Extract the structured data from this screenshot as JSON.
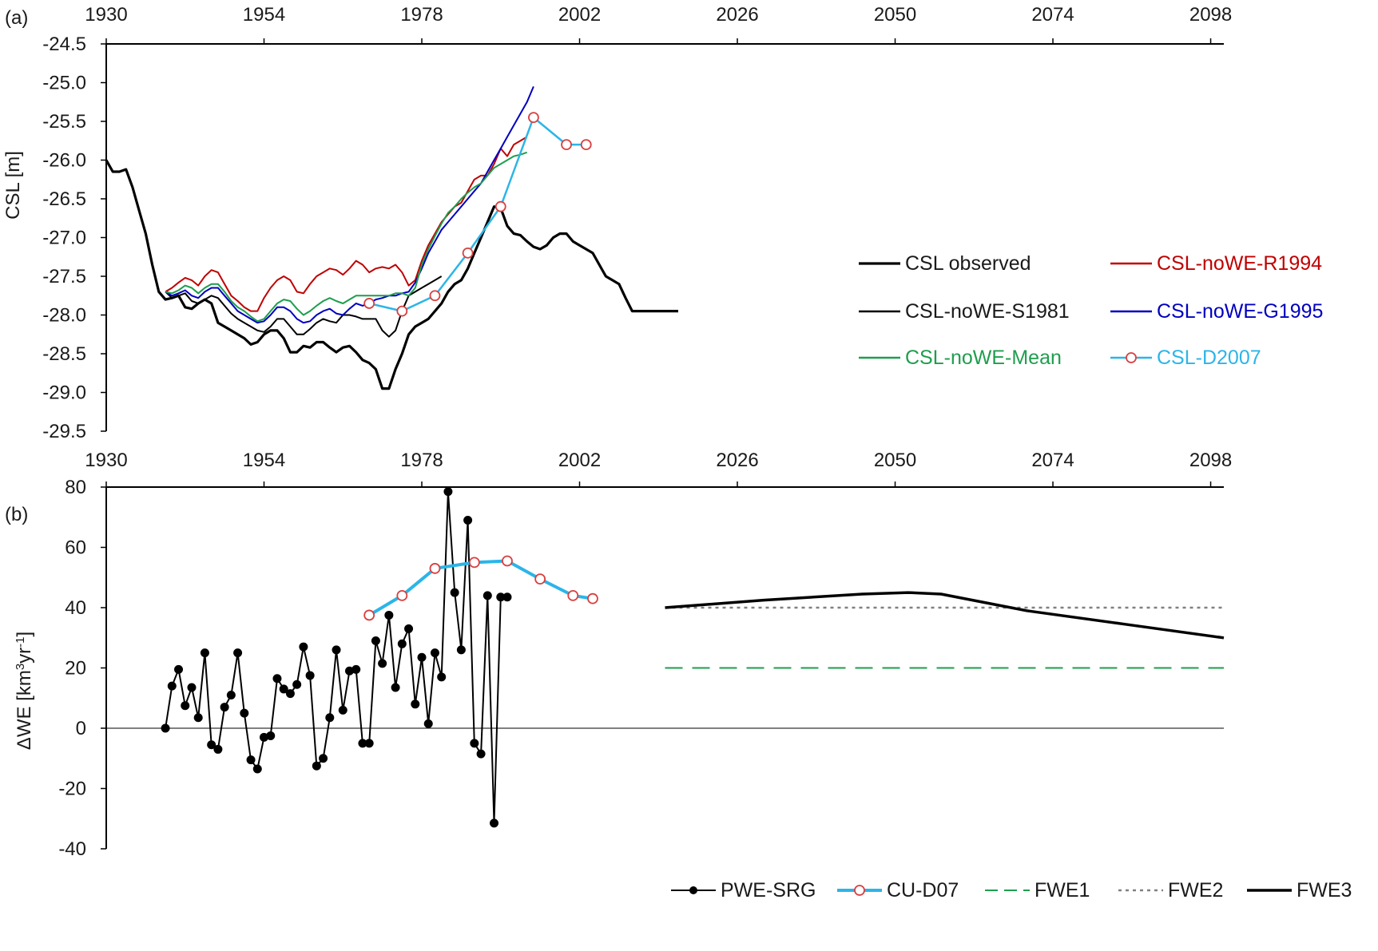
{
  "chart_data": [
    {
      "type": "line",
      "panel_label": "(a)",
      "ylabel": "CSL [m]",
      "xlabel": "",
      "xlim": [
        1930,
        2100
      ],
      "ylim": [
        -29.5,
        -24.5
      ],
      "xticks": [
        "1930",
        "1954",
        "1978",
        "2002",
        "2026",
        "2050",
        "2074",
        "2098"
      ],
      "yticks": [
        "-24.5",
        "-25.0",
        "-25.5",
        "-26.0",
        "-26.5",
        "-27.0",
        "-27.5",
        "-28.0",
        "-28.5",
        "-29.0",
        "-29.5"
      ],
      "x_axis_position": "top",
      "grid": false,
      "legend_position": "right",
      "series": [
        {
          "name": "CSL observed",
          "color": "#000000",
          "x": [
            1930,
            1931,
            1932,
            1933,
            1934,
            1935,
            1936,
            1937,
            1938,
            1939,
            1940,
            1941,
            1942,
            1943,
            1944,
            1945,
            1946,
            1947,
            1948,
            1949,
            1950,
            1951,
            1952,
            1953,
            1954,
            1955,
            1956,
            1957,
            1958,
            1959,
            1960,
            1961,
            1962,
            1963,
            1964,
            1965,
            1966,
            1967,
            1968,
            1969,
            1970,
            1971,
            1972,
            1973,
            1974,
            1975,
            1976,
            1977,
            1978,
            1979,
            1980,
            1981,
            1982,
            1983,
            1984,
            1985,
            1986,
            1987,
            1988,
            1989,
            1990,
            1991,
            1992,
            1993,
            1994,
            1995,
            1996,
            1997,
            1998,
            1999,
            2000,
            2001,
            2002,
            2003,
            2004,
            2005,
            2006,
            2007,
            2008,
            2009,
            2010,
            2011,
            2012,
            2013,
            2014,
            2015,
            2016,
            2017
          ],
          "values": [
            -26.0,
            -26.15,
            -26.15,
            -26.12,
            -26.35,
            -26.65,
            -26.95,
            -27.35,
            -27.7,
            -27.8,
            -27.78,
            -27.75,
            -27.9,
            -27.92,
            -27.85,
            -27.8,
            -27.85,
            -28.1,
            -28.15,
            -28.2,
            -28.25,
            -28.3,
            -28.38,
            -28.35,
            -28.25,
            -28.2,
            -28.2,
            -28.3,
            -28.48,
            -28.48,
            -28.4,
            -28.42,
            -28.35,
            -28.35,
            -28.42,
            -28.48,
            -28.42,
            -28.4,
            -28.48,
            -28.58,
            -28.62,
            -28.7,
            -28.95,
            -28.95,
            -28.7,
            -28.5,
            -28.25,
            -28.15,
            -28.1,
            -28.05,
            -27.95,
            -27.85,
            -27.7,
            -27.6,
            -27.55,
            -27.4,
            -27.2,
            -27.0,
            -26.8,
            -26.6,
            -26.62,
            -26.85,
            -26.95,
            -26.97,
            -27.05,
            -27.12,
            -27.15,
            -27.1,
            -27.0,
            -26.95,
            -26.95,
            -27.05,
            -27.1,
            -27.15,
            -27.2,
            -27.35,
            -27.5,
            -27.55,
            -27.6,
            -27.78,
            -27.95,
            -27.95,
            -27.95,
            -27.95,
            -27.95,
            -27.95,
            -27.95,
            -27.95
          ]
        },
        {
          "name": "CSL-noWE-S1981",
          "color": "#000000",
          "x": [
            1939,
            1940,
            1941,
            1942,
            1943,
            1944,
            1945,
            1946,
            1947,
            1948,
            1949,
            1950,
            1951,
            1952,
            1953,
            1954,
            1955,
            1956,
            1957,
            1958,
            1959,
            1960,
            1961,
            1962,
            1963,
            1964,
            1965,
            1966,
            1967,
            1968,
            1969,
            1970,
            1971,
            1972,
            1973,
            1974,
            1975,
            1976,
            1977,
            1978,
            1979,
            1980,
            1981
          ],
          "values": [
            -27.7,
            -27.78,
            -27.75,
            -27.72,
            -27.82,
            -27.85,
            -27.8,
            -27.75,
            -27.78,
            -27.88,
            -27.98,
            -28.05,
            -28.1,
            -28.15,
            -28.2,
            -28.22,
            -28.15,
            -28.05,
            -28.05,
            -28.15,
            -28.25,
            -28.25,
            -28.18,
            -28.1,
            -28.05,
            -28.08,
            -28.1,
            -28.0,
            -28.0,
            -28.02,
            -28.05,
            -28.05,
            -28.05,
            -28.2,
            -28.28,
            -28.2,
            -27.95,
            -27.75,
            -27.7,
            -27.65,
            -27.6,
            -27.55,
            -27.5
          ]
        },
        {
          "name": "CSL-noWE-R1994",
          "color": "#c00000",
          "x": [
            1939,
            1940,
            1941,
            1942,
            1943,
            1944,
            1945,
            1946,
            1947,
            1948,
            1949,
            1950,
            1951,
            1952,
            1953,
            1954,
            1955,
            1956,
            1957,
            1958,
            1959,
            1960,
            1961,
            1962,
            1963,
            1964,
            1965,
            1966,
            1967,
            1968,
            1969,
            1970,
            1971,
            1972,
            1973,
            1974,
            1975,
            1976,
            1977,
            1978,
            1979,
            1980,
            1981,
            1982,
            1983,
            1984,
            1985,
            1986,
            1987,
            1988,
            1989,
            1990,
            1991,
            1992,
            1993,
            1994
          ],
          "values": [
            -27.7,
            -27.65,
            -27.58,
            -27.52,
            -27.55,
            -27.62,
            -27.5,
            -27.42,
            -27.45,
            -27.6,
            -27.75,
            -27.82,
            -27.9,
            -27.95,
            -27.95,
            -27.78,
            -27.65,
            -27.55,
            -27.5,
            -27.55,
            -27.7,
            -27.72,
            -27.6,
            -27.5,
            -27.45,
            -27.4,
            -27.42,
            -27.48,
            -27.4,
            -27.3,
            -27.35,
            -27.45,
            -27.4,
            -27.38,
            -27.4,
            -27.35,
            -27.45,
            -27.62,
            -27.55,
            -27.3,
            -27.1,
            -26.95,
            -26.8,
            -26.7,
            -26.6,
            -26.55,
            -26.4,
            -26.25,
            -26.2,
            -26.2,
            -26.05,
            -25.85,
            -25.95,
            -25.8,
            -25.75,
            -25.7
          ]
        },
        {
          "name": "CSL-noWE-G1995",
          "color": "#0000c0",
          "x": [
            1939,
            1940,
            1941,
            1942,
            1943,
            1944,
            1945,
            1946,
            1947,
            1948,
            1949,
            1950,
            1951,
            1952,
            1953,
            1954,
            1955,
            1956,
            1957,
            1958,
            1959,
            1960,
            1961,
            1962,
            1963,
            1964,
            1965,
            1966,
            1967,
            1968,
            1969,
            1970,
            1971,
            1972,
            1973,
            1974,
            1975,
            1976,
            1977,
            1978,
            1979,
            1980,
            1981,
            1982,
            1983,
            1984,
            1985,
            1986,
            1987,
            1988,
            1989,
            1990,
            1991,
            1992,
            1993,
            1994,
            1995
          ],
          "values": [
            -27.7,
            -27.75,
            -27.72,
            -27.68,
            -27.75,
            -27.78,
            -27.7,
            -27.65,
            -27.65,
            -27.75,
            -27.85,
            -27.95,
            -28.0,
            -28.05,
            -28.1,
            -28.08,
            -28.0,
            -27.9,
            -27.9,
            -27.95,
            -28.05,
            -28.1,
            -28.08,
            -28.0,
            -27.95,
            -27.92,
            -27.98,
            -28.0,
            -27.92,
            -27.85,
            -27.88,
            -27.85,
            -27.8,
            -27.78,
            -27.75,
            -27.75,
            -27.72,
            -27.7,
            -27.58,
            -27.4,
            -27.2,
            -27.05,
            -26.9,
            -26.8,
            -26.7,
            -26.6,
            -26.5,
            -26.4,
            -26.3,
            -26.15,
            -26.0,
            -25.85,
            -25.7,
            -25.55,
            -25.4,
            -25.25,
            -25.05
          ]
        },
        {
          "name": "CSL-noWE-Mean",
          "color": "#1e9e4e",
          "x": [
            1939,
            1940,
            1941,
            1942,
            1943,
            1944,
            1945,
            1946,
            1947,
            1948,
            1949,
            1950,
            1951,
            1952,
            1953,
            1954,
            1955,
            1956,
            1957,
            1958,
            1959,
            1960,
            1961,
            1962,
            1963,
            1964,
            1965,
            1966,
            1967,
            1968,
            1969,
            1970,
            1971,
            1972,
            1973,
            1974,
            1975,
            1976,
            1977,
            1978,
            1979,
            1980,
            1981,
            1982,
            1983,
            1984,
            1985,
            1986,
            1987,
            1988,
            1989,
            1990,
            1991,
            1992,
            1993,
            1994
          ],
          "values": [
            -27.7,
            -27.72,
            -27.68,
            -27.62,
            -27.65,
            -27.72,
            -27.65,
            -27.6,
            -27.6,
            -27.7,
            -27.82,
            -27.9,
            -27.95,
            -28.02,
            -28.08,
            -28.05,
            -27.95,
            -27.85,
            -27.8,
            -27.82,
            -27.92,
            -28.0,
            -27.95,
            -27.88,
            -27.82,
            -27.78,
            -27.82,
            -27.85,
            -27.8,
            -27.75,
            -27.75,
            -27.75,
            -27.75,
            -27.75,
            -27.75,
            -27.72,
            -27.72,
            -27.75,
            -27.65,
            -27.35,
            -27.15,
            -26.98,
            -26.82,
            -26.68,
            -26.6,
            -26.5,
            -26.42,
            -26.35,
            -26.3,
            -26.2,
            -26.1,
            -26.05,
            -26.0,
            -25.95,
            -25.93,
            -25.9
          ]
        },
        {
          "name": "CSL-D2007",
          "color": "#2bb5e8",
          "marker": "circle-open",
          "marker_color": "#d94040",
          "x": [
            1970,
            1975,
            1980,
            1985,
            1990,
            1995,
            2000,
            2003
          ],
          "values": [
            -27.85,
            -27.95,
            -27.75,
            -27.2,
            -26.6,
            -25.45,
            -25.8,
            -25.8
          ]
        }
      ]
    },
    {
      "type": "line",
      "panel_label": "(b)",
      "ylabel": "ΔWE [km",
      "ylabel_sup1": "3",
      "ylabel_mid": "yr",
      "ylabel_sup2": "-1",
      "ylabel_end": "]",
      "xlabel": "",
      "xlim": [
        1930,
        2100
      ],
      "ylim": [
        -40,
        80
      ],
      "xticks": [
        "1930",
        "1954",
        "1978",
        "2002",
        "2026",
        "2050",
        "2074",
        "2098"
      ],
      "yticks": [
        "80",
        "60",
        "40",
        "20",
        "0",
        "-20",
        "-40"
      ],
      "x_axis_position": "top",
      "grid": false,
      "zero_line": true,
      "legend_position": "bottom-right",
      "series": [
        {
          "name": "PWE-SRG",
          "color": "#000000",
          "marker": "circle-filled",
          "x": [
            1939,
            1940,
            1941,
            1942,
            1943,
            1944,
            1945,
            1946,
            1947,
            1948,
            1949,
            1950,
            1951,
            1952,
            1953,
            1954,
            1955,
            1956,
            1957,
            1958,
            1959,
            1960,
            1961,
            1962,
            1963,
            1964,
            1965,
            1966,
            1967,
            1968,
            1969,
            1970,
            1971,
            1972,
            1973,
            1974,
            1975,
            1976,
            1977,
            1978,
            1979,
            1980,
            1981,
            1982,
            1983,
            1984,
            1985,
            1986,
            1987,
            1988,
            1989,
            1990,
            1991
          ],
          "values": [
            0,
            14,
            19.5,
            7.5,
            13.5,
            3.5,
            25,
            -5.5,
            -7,
            7,
            11,
            25,
            5,
            -10.5,
            -13.5,
            -3,
            -2.5,
            16.5,
            13,
            11.5,
            14.5,
            27,
            17.5,
            -12.5,
            -10,
            3.5,
            26,
            6,
            19,
            19.5,
            -5,
            -5,
            29,
            21.5,
            37.5,
            13.5,
            28,
            33,
            8,
            23.5,
            1.5,
            25,
            17,
            78.5,
            45,
            26,
            69,
            -5,
            -8.5,
            44,
            -31.5,
            43.5,
            43.5
          ]
        },
        {
          "name": "CU-D07",
          "color": "#2bb5e8",
          "marker": "circle-open",
          "marker_color": "#d94040",
          "x": [
            1970,
            1975,
            1980,
            1986,
            1991,
            1996,
            2001,
            2004
          ],
          "values": [
            37.5,
            44,
            53,
            55,
            55.5,
            49.5,
            44,
            43
          ]
        },
        {
          "name": "FWE1",
          "color": "#1e9e4e",
          "style": "dashed",
          "x": [
            2015,
            2100
          ],
          "values": [
            20,
            20
          ]
        },
        {
          "name": "FWE2",
          "color": "#808080",
          "style": "dotted",
          "x": [
            2015,
            2100
          ],
          "values": [
            40,
            40
          ]
        },
        {
          "name": "FWE3",
          "color": "#000000",
          "style": "thick",
          "x": [
            2015,
            2030,
            2045,
            2052,
            2057,
            2070,
            2085,
            2100
          ],
          "values": [
            40,
            42.5,
            44.5,
            45,
            44.5,
            39,
            34.5,
            30
          ]
        }
      ]
    }
  ]
}
